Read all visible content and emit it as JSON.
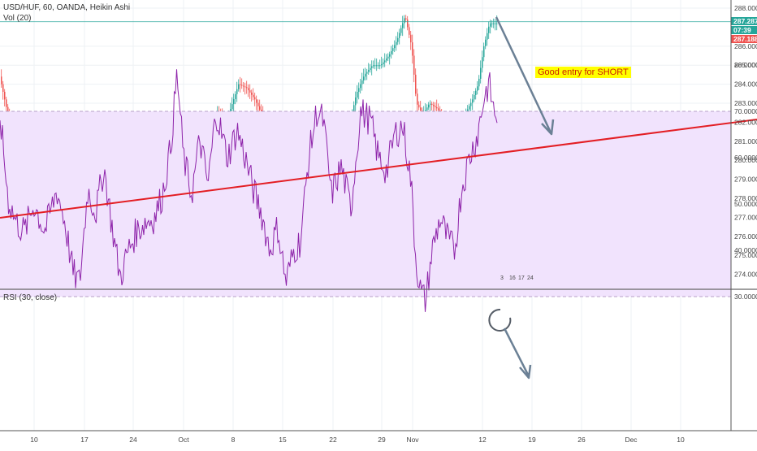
{
  "header": {
    "symbol_line": "USD/HUF, 60, OANDA, Heikin Ashi",
    "volume_label": "Vol (20)",
    "rsi_label": "RSI (30, close)"
  },
  "annotation": {
    "text": "Good entry for SHORT"
  },
  "price_tags": [
    {
      "label": "287.287",
      "color": "#26a69a"
    },
    {
      "label": "07:39",
      "color": "#26a69a"
    },
    {
      "label": "287.188",
      "color": "#ef5350"
    }
  ],
  "volume_inline_labels": [
    "3",
    "16",
    "17",
    "24"
  ],
  "colors": {
    "up": "#26a69a",
    "down": "#ef5350",
    "trendline": "#e31e24",
    "arrow": "#6b8095",
    "rsi_line": "#8e24aa",
    "rsi_band": "#f1e3fd",
    "annotation_bg": "#ffff00",
    "annotation_text": "#cc2200"
  },
  "chart_data": [
    {
      "type": "line",
      "title": "USD/HUF, 60, OANDA, Heikin Ashi",
      "xlabel": "",
      "ylabel": "",
      "ylim": [
        273.3,
        288.5
      ],
      "price_ticks": [
        "288.000",
        "286.000",
        "285.000",
        "284.000",
        "283.000",
        "282.000",
        "281.000",
        "280.000",
        "279.000",
        "278.000",
        "277.000",
        "276.000",
        "275.000",
        "274.000"
      ],
      "time_ticks": [
        "10",
        "17",
        "24",
        "Oct",
        "8",
        "15",
        "22",
        "29",
        "Nov",
        "12",
        "19",
        "26",
        "Dec",
        "10"
      ],
      "series": [
        {
          "values": [
            [
              0,
              284.6
            ],
            [
              12,
              282.2
            ],
            [
              20,
              281.2
            ],
            [
              30,
              279.3
            ],
            [
              38,
              281.5
            ],
            [
              48,
              280.0
            ],
            [
              58,
              279.1
            ],
            [
              70,
              281.5
            ],
            [
              80,
              279.0
            ],
            [
              88,
              276.7
            ],
            [
              97,
              275.9
            ],
            [
              104,
              278.6
            ],
            [
              112,
              277.8
            ],
            [
              120,
              277.6
            ],
            [
              132,
              276.3
            ],
            [
              142,
              275.3
            ],
            [
              156,
              274.2
            ],
            [
              164,
              275.2
            ],
            [
              176,
              275.5
            ],
            [
              188,
              275.6
            ],
            [
              200,
              276.3
            ],
            [
              210,
              278.0
            ],
            [
              222,
              279.7
            ],
            [
              232,
              278.4
            ],
            [
              244,
              281.2
            ],
            [
              256,
              279.0
            ],
            [
              268,
              282.5
            ],
            [
              282,
              282.3
            ],
            [
              295,
              284.0
            ],
            [
              305,
              283.8
            ],
            [
              315,
              283.2
            ],
            [
              325,
              282.3
            ],
            [
              335,
              281.1
            ],
            [
              345,
              280.8
            ],
            [
              355,
              278.5
            ],
            [
              365,
              277.5
            ],
            [
              372,
              278.5
            ],
            [
              380,
              280.5
            ],
            [
              390,
              280.7
            ],
            [
              400,
              282.0
            ],
            [
              410,
              281.3
            ],
            [
              420,
              282.0
            ],
            [
              430,
              281.5
            ],
            [
              440,
              283.5
            ],
            [
              450,
              284.5
            ],
            [
              460,
              285.0
            ],
            [
              470,
              285.0
            ],
            [
              480,
              285.5
            ],
            [
              490,
              286.3
            ],
            [
              500,
              287.6
            ],
            [
              508,
              286.0
            ],
            [
              514,
              283.0
            ],
            [
              522,
              282.4
            ],
            [
              530,
              283.0
            ],
            [
              540,
              282.7
            ],
            [
              550,
              282.0
            ],
            [
              558,
              281.2
            ],
            [
              563,
              279.8
            ],
            [
              568,
              281.0
            ],
            [
              575,
              282.5
            ],
            [
              583,
              283.2
            ],
            [
              590,
              284.0
            ],
            [
              597,
              286.0
            ],
            [
              604,
              287.2
            ],
            [
              610,
              287.2
            ]
          ]
        }
      ],
      "annotations": [
        {
          "text": "Good entry for SHORT"
        }
      ]
    },
    {
      "type": "line",
      "title": "RSI (30, close)",
      "xlabel": "",
      "ylabel": "",
      "ylim": [
        24,
        82
      ],
      "band": [
        30,
        70
      ],
      "y_ticks": [
        "80.0000",
        "70.0000",
        "60.0000",
        "50.0000",
        "40.0000",
        "30.0000"
      ],
      "series": [
        {
          "values": [
            [
              0,
              69
            ],
            [
              10,
              51
            ],
            [
              20,
              46
            ],
            [
              30,
              44
            ],
            [
              42,
              50
            ],
            [
              55,
              44
            ],
            [
              70,
              53
            ],
            [
              80,
              46
            ],
            [
              90,
              35
            ],
            [
              98,
              33
            ],
            [
              108,
              53
            ],
            [
              118,
              48
            ],
            [
              128,
              58
            ],
            [
              138,
              45
            ],
            [
              148,
              34
            ],
            [
              158,
              40
            ],
            [
              168,
              44
            ],
            [
              178,
              46
            ],
            [
              190,
              47
            ],
            [
              200,
              52
            ],
            [
              210,
              62
            ],
            [
              218,
              78
            ],
            [
              226,
              60
            ],
            [
              236,
              52
            ],
            [
              246,
              64
            ],
            [
              256,
              54
            ],
            [
              266,
              70
            ],
            [
              280,
              60
            ],
            [
              292,
              66
            ],
            [
              302,
              60
            ],
            [
              312,
              53
            ],
            [
              322,
              48
            ],
            [
              332,
              40
            ],
            [
              342,
              45
            ],
            [
              352,
              33
            ],
            [
              362,
              40
            ],
            [
              370,
              42
            ],
            [
              380,
              60
            ],
            [
              390,
              70
            ],
            [
              398,
              68
            ],
            [
              408,
              52
            ],
            [
              420,
              58
            ],
            [
              432,
              49
            ],
            [
              444,
              70
            ],
            [
              456,
              68
            ],
            [
              466,
              60
            ],
            [
              476,
              57
            ],
            [
              486,
              65
            ],
            [
              496,
              67
            ],
            [
              506,
              55
            ],
            [
              512,
              38
            ],
            [
              518,
              31
            ],
            [
              524,
              29
            ],
            [
              532,
              40
            ],
            [
              542,
              47
            ],
            [
              552,
              42
            ],
            [
              560,
              40
            ],
            [
              568,
              53
            ],
            [
              578,
              60
            ],
            [
              588,
              65
            ],
            [
              596,
              73
            ],
            [
              602,
              76
            ],
            [
              608,
              70
            ],
            [
              612,
              69
            ]
          ]
        }
      ]
    }
  ]
}
